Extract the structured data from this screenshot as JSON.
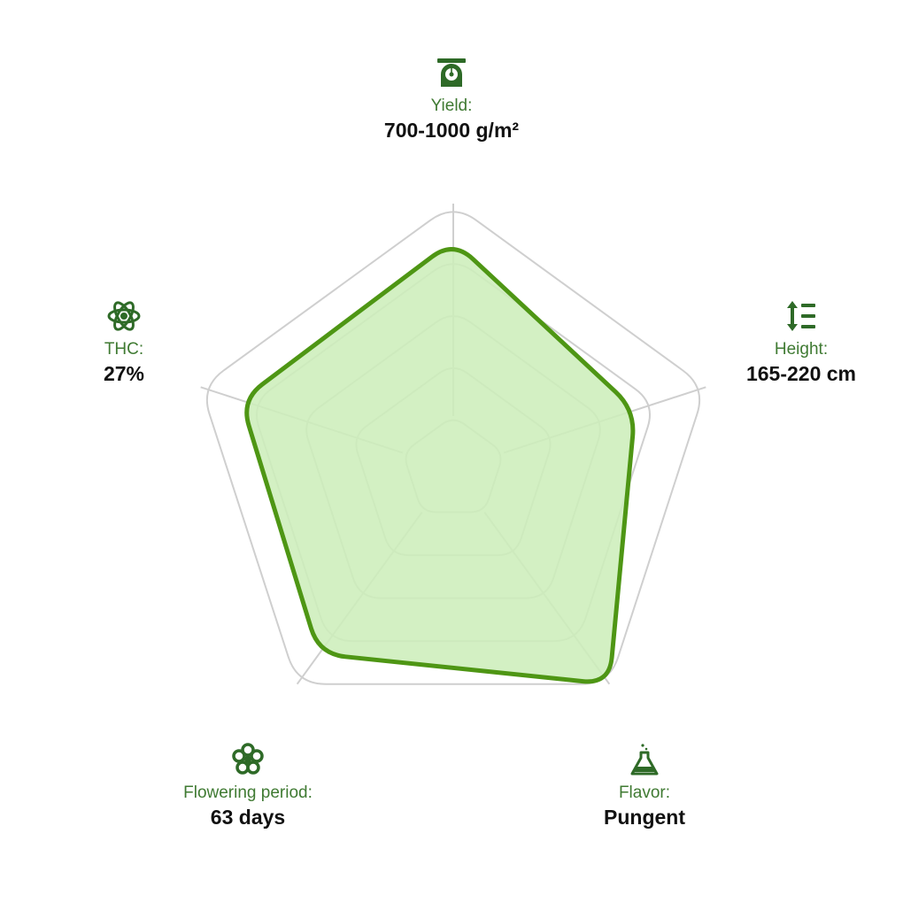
{
  "colors": {
    "accent": "#4e9614",
    "fill": "#cdeebb",
    "grid": "#cfcfcf",
    "label": "#3f7a32",
    "value": "#111111",
    "icon": "#2e6a27"
  },
  "chart_data": {
    "type": "radar",
    "levels": 5,
    "range": [
      0,
      5
    ],
    "axes": [
      {
        "label": "Yield:",
        "value_text": "700-1000 g/m²",
        "icon": "scale-icon"
      },
      {
        "label": "Height:",
        "value_text": "165-220 cm",
        "icon": "height-arrows-icon"
      },
      {
        "label": "Flavor:",
        "value_text": "Pungent",
        "icon": "flask-icon"
      },
      {
        "label": "Flowering period:",
        "value_text": "63 days",
        "icon": "flower-icon"
      },
      {
        "label": "THC:",
        "value_text": "27%",
        "icon": "atom-icon"
      }
    ],
    "values": [
      4.3,
      3.6,
      5.0,
      4.3,
      4.2
    ]
  }
}
